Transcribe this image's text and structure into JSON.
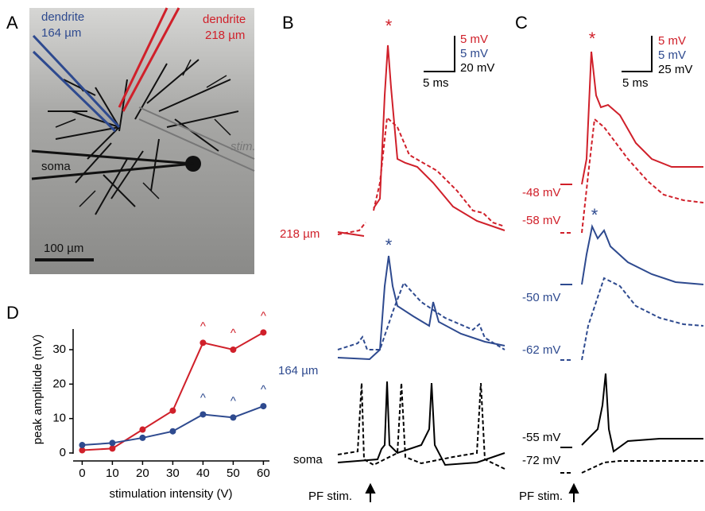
{
  "panel_labels": [
    "A",
    "B",
    "C",
    "D"
  ],
  "panel_a": {
    "dendrite_blue": "dendrite",
    "dendrite_blue_distance": "164 µm",
    "dendrite_red": "dendrite",
    "dendrite_red_distance": "218 µm",
    "soma": "soma",
    "stim": "stim.",
    "scale": "100 µm"
  },
  "panel_b": {
    "scale_red": "5 mV",
    "scale_blue": "5 mV",
    "scale_black": "20 mV",
    "scale_time": "5 ms",
    "star_red": "*",
    "star_blue": "*",
    "trace_red": "218 µm",
    "trace_blue": "164 µm",
    "trace_black": "soma",
    "stim": "PF stim."
  },
  "panel_c": {
    "scale_red": "5 mV",
    "scale_blue": "5 mV",
    "scale_black": "25 mV",
    "scale_time": "5 ms",
    "star_red": "*",
    "star_blue": "*",
    "red_solid": "-48 mV",
    "red_dashed": "-58 mV",
    "blue_solid": "-50 mV",
    "blue_dashed": "-62 mV",
    "black_solid": "-55 mV",
    "black_dashed": "-72 mV",
    "stim": "PF stim."
  },
  "chart_data": {
    "type": "line",
    "xlabel": "stimulation intensity (V)",
    "ylabel": "peak amplitude (mV)",
    "x": [
      0,
      10,
      20,
      30,
      40,
      50,
      60
    ],
    "series": [
      {
        "name": "218 µm",
        "color": "#d0202a",
        "values": [
          0.8,
          1.3,
          6.8,
          12.3,
          32,
          30,
          35
        ]
      },
      {
        "name": "164 µm",
        "color": "#2e4a8f",
        "values": [
          2.3,
          2.9,
          4.4,
          6.3,
          11.2,
          10.3,
          13.6
        ]
      }
    ],
    "annotations": [
      {
        "series": 0,
        "x": 40,
        "text": "^"
      },
      {
        "series": 0,
        "x": 50,
        "text": "^"
      },
      {
        "series": 0,
        "x": 60,
        "text": "^"
      },
      {
        "series": 1,
        "x": 40,
        "text": "^"
      },
      {
        "series": 1,
        "x": 50,
        "text": "^"
      },
      {
        "series": 1,
        "x": 60,
        "text": "^"
      }
    ],
    "xlim": [
      -3,
      62
    ],
    "ylim": [
      0,
      36
    ],
    "xticks": [
      0,
      10,
      20,
      30,
      40,
      50,
      60
    ],
    "yticks": [
      0,
      10,
      20,
      30
    ]
  }
}
